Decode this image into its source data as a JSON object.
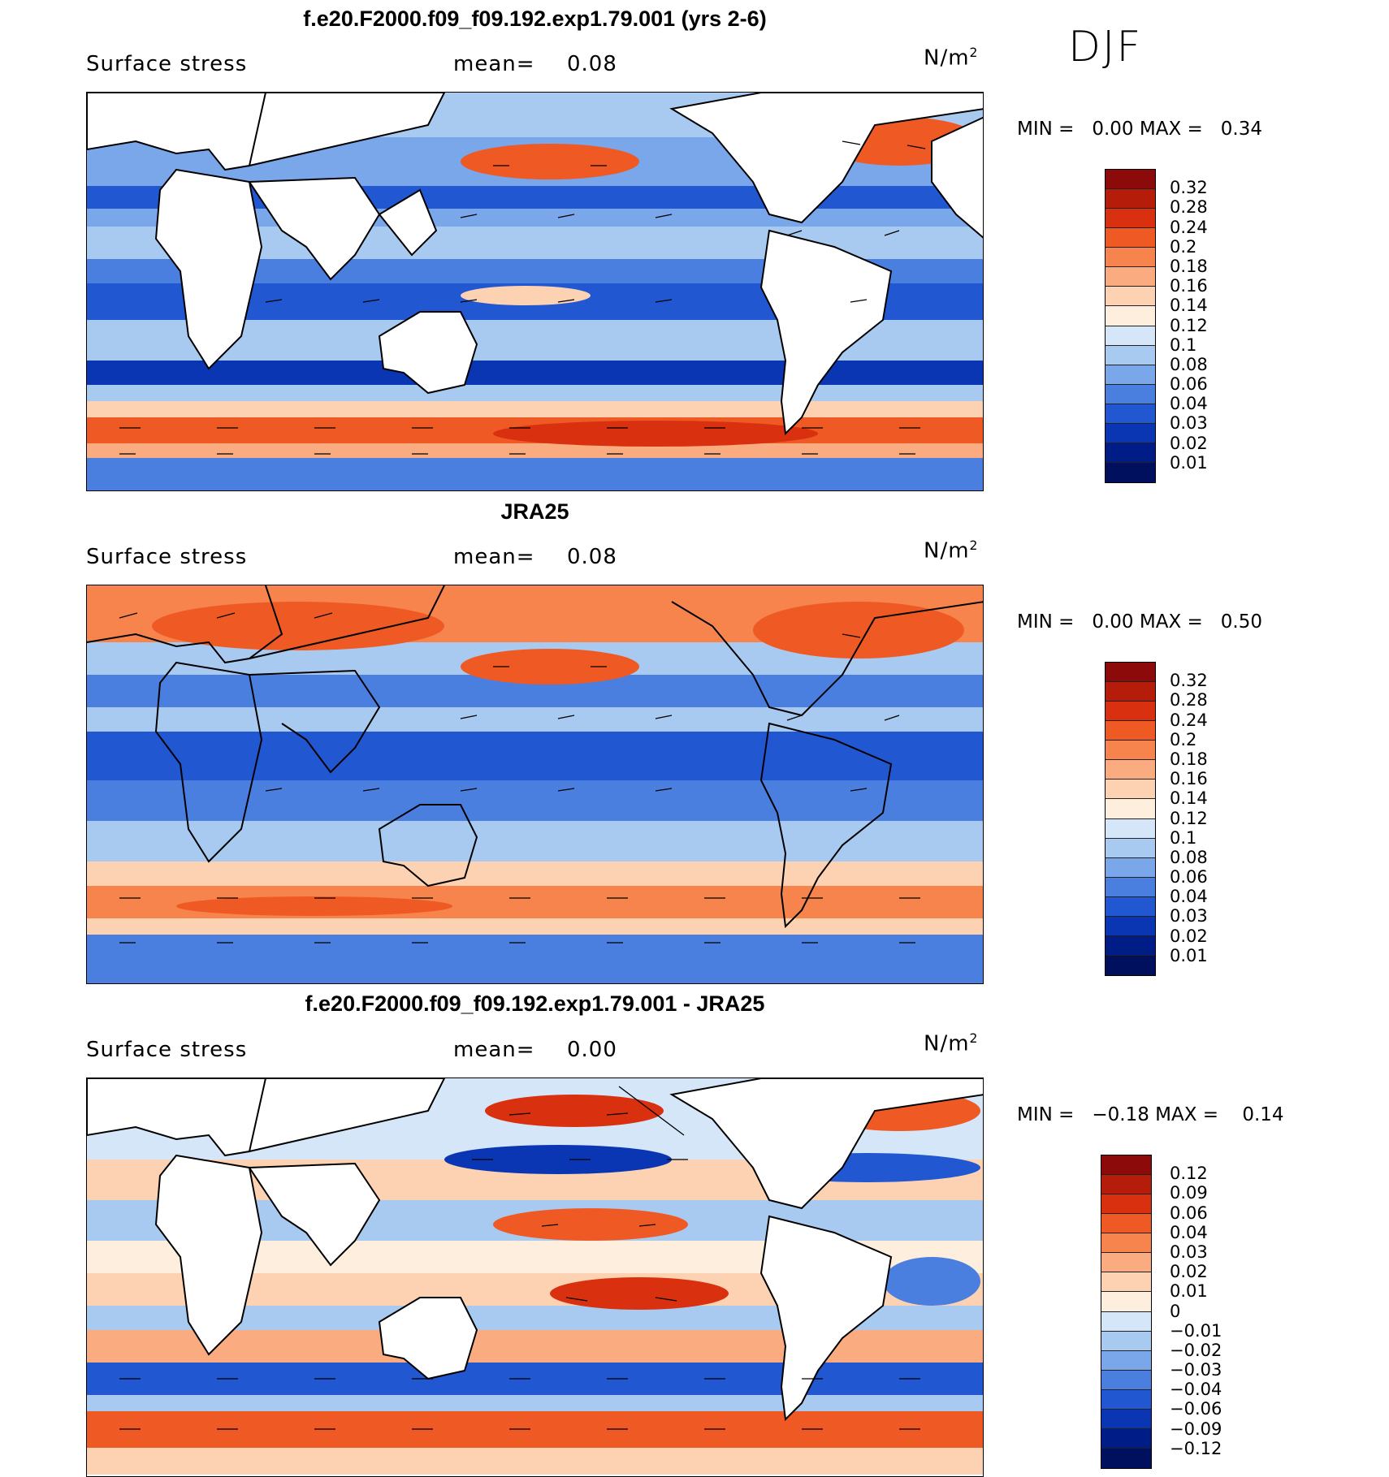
{
  "season": "DJF",
  "panels": [
    {
      "title": "f.e20.F2000.f09_f09.192.exp1.79.001 (yrs 2-6)",
      "variable": "Surface stress",
      "mean_label": "mean=",
      "mean_value": "0.08",
      "units": "N/m",
      "units_exp": "2",
      "min_label": "MIN =",
      "min_value": "0.00",
      "max_label": "MAX =",
      "max_value": "0.34",
      "colorbar": {
        "labels": [
          "0.32",
          "0.28",
          "0.24",
          "0.2",
          "0.18",
          "0.16",
          "0.14",
          "0.12",
          "0.1",
          "0.08",
          "0.06",
          "0.04",
          "0.03",
          "0.02",
          "0.01"
        ],
        "colors": [
          "#8c0a0a",
          "#b51d0a",
          "#d9310f",
          "#ef5a24",
          "#f7844d",
          "#fbab80",
          "#fdd2b2",
          "#fdeedd",
          "#d4e6f7",
          "#a8caf0",
          "#7aa6ea",
          "#4a7fe0",
          "#2257d2",
          "#0a36b3",
          "#001c86",
          "#00105e"
        ]
      }
    },
    {
      "title": "JRA25",
      "variable": "Surface stress",
      "mean_label": "mean=",
      "mean_value": "0.08",
      "units": "N/m",
      "units_exp": "2",
      "min_label": "MIN =",
      "min_value": "0.00",
      "max_label": "MAX =",
      "max_value": "0.50",
      "colorbar": {
        "labels": [
          "0.32",
          "0.28",
          "0.24",
          "0.2",
          "0.18",
          "0.16",
          "0.14",
          "0.12",
          "0.1",
          "0.08",
          "0.06",
          "0.04",
          "0.03",
          "0.02",
          "0.01"
        ],
        "colors": [
          "#8c0a0a",
          "#b51d0a",
          "#d9310f",
          "#ef5a24",
          "#f7844d",
          "#fbab80",
          "#fdd2b2",
          "#fdeedd",
          "#d4e6f7",
          "#a8caf0",
          "#7aa6ea",
          "#4a7fe0",
          "#2257d2",
          "#0a36b3",
          "#001c86",
          "#00105e"
        ]
      }
    },
    {
      "title": "f.e20.F2000.f09_f09.192.exp1.79.001 - JRA25",
      "variable": "Surface stress",
      "mean_label": "mean=",
      "mean_value": "0.00",
      "units": "N/m",
      "units_exp": "2",
      "min_label": "MIN =",
      "min_value": "−0.18",
      "max_label": "MAX =",
      "max_value": "0.14",
      "colorbar": {
        "labels": [
          "0.12",
          "0.09",
          "0.06",
          "0.04",
          "0.03",
          "0.02",
          "0.01",
          "0",
          "−0.01",
          "−0.02",
          "−0.03",
          "−0.04",
          "−0.06",
          "−0.09",
          "−0.12"
        ],
        "colors": [
          "#8c0a0a",
          "#b51d0a",
          "#d9310f",
          "#ef5a24",
          "#f7844d",
          "#fbab80",
          "#fdd2b2",
          "#fdeedd",
          "#d4e6f7",
          "#a8caf0",
          "#7aa6ea",
          "#4a7fe0",
          "#2257d2",
          "#0a36b3",
          "#001c86",
          "#00105e"
        ]
      }
    }
  ]
}
